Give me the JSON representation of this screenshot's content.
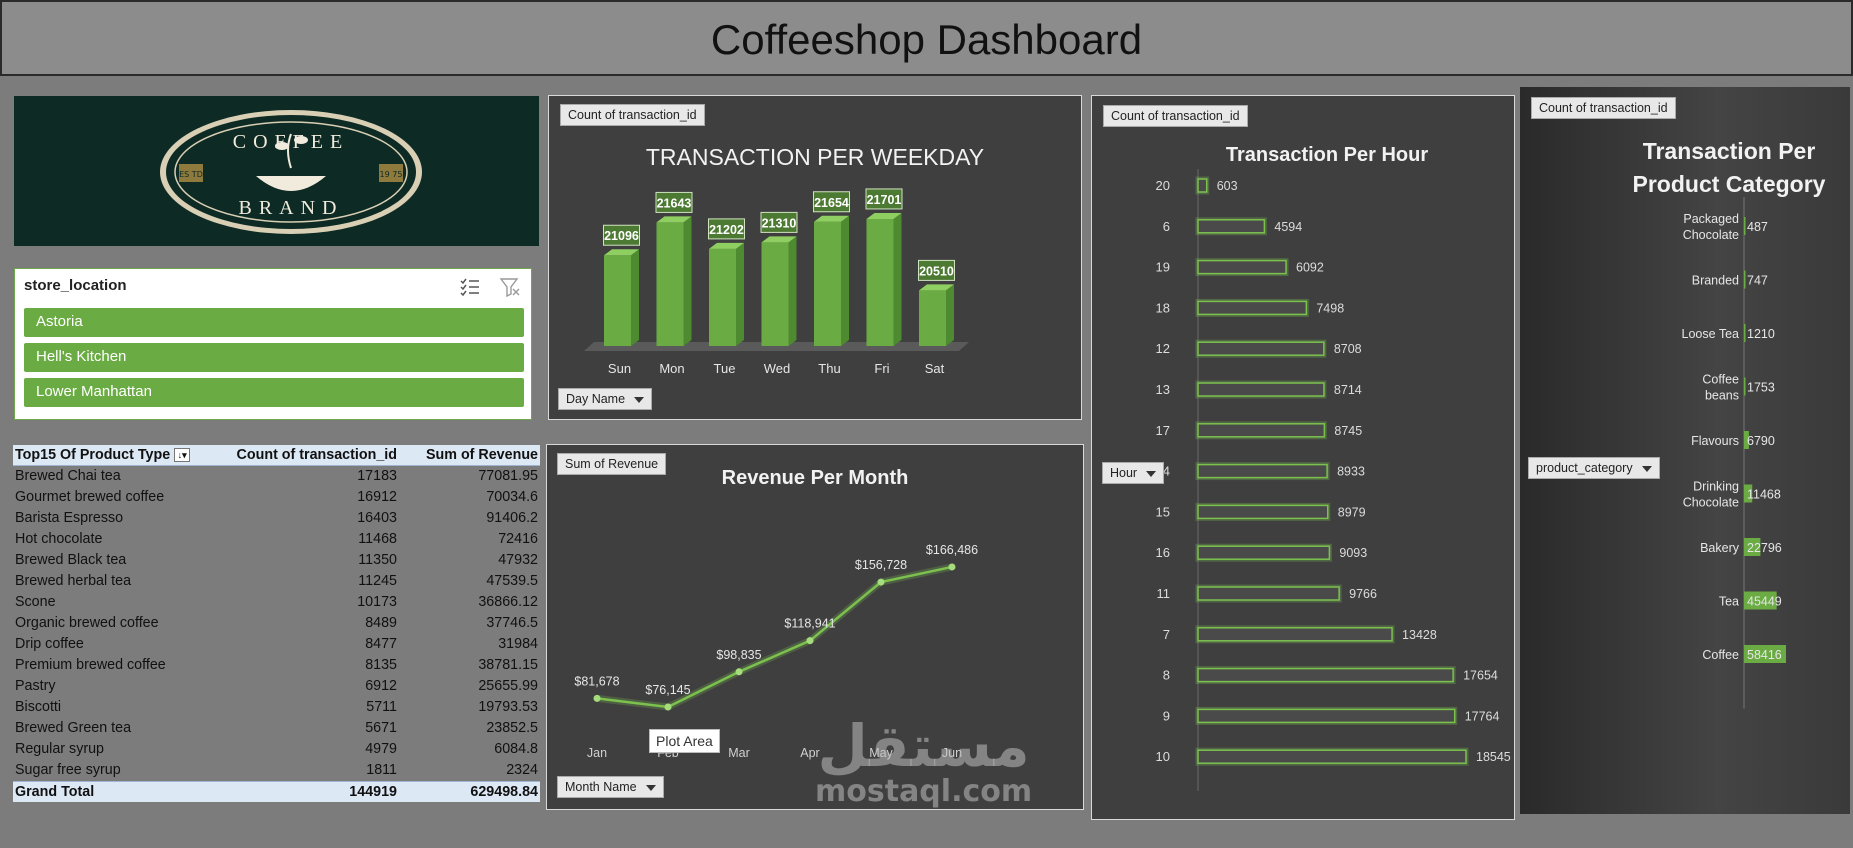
{
  "header": {
    "title": "Coffeeshop Dashboard"
  },
  "logo": {
    "top_text": "COFFEE",
    "bottom_text": "BRAND",
    "left_badge": "ES TD",
    "right_badge": "19 75"
  },
  "slicer": {
    "title": "store_location",
    "items": [
      "Astoria",
      "Hell's Kitchen",
      "Lower Manhattan"
    ]
  },
  "pivot": {
    "headers": [
      "Top15 Of Product Type",
      "Count of transaction_id",
      "Sum of Revenue"
    ],
    "rows": [
      [
        "Brewed Chai tea",
        "17183",
        "77081.95"
      ],
      [
        "Gourmet brewed coffee",
        "16912",
        "70034.6"
      ],
      [
        "Barista Espresso",
        "16403",
        "91406.2"
      ],
      [
        "Hot chocolate",
        "11468",
        "72416"
      ],
      [
        "Brewed Black tea",
        "11350",
        "47932"
      ],
      [
        "Brewed herbal tea",
        "11245",
        "47539.5"
      ],
      [
        "Scone",
        "10173",
        "36866.12"
      ],
      [
        "Organic brewed coffee",
        "8489",
        "37746.5"
      ],
      [
        "Drip coffee",
        "8477",
        "31984"
      ],
      [
        "Premium brewed coffee",
        "8135",
        "38781.15"
      ],
      [
        "Pastry",
        "6912",
        "25655.99"
      ],
      [
        "Biscotti",
        "5711",
        "19793.53"
      ],
      [
        "Brewed Green tea",
        "5671",
        "23852.5"
      ],
      [
        "Regular syrup",
        "4979",
        "6084.8"
      ],
      [
        "Sugar free syrup",
        "1811",
        "2324"
      ]
    ],
    "total": [
      "Grand Total",
      "144919",
      "629498.84"
    ]
  },
  "weekday": {
    "tag": "Count of transaction_id",
    "filter": "Day Name"
  },
  "revenue": {
    "tag": "Sum of Revenue",
    "filter": "Month Name",
    "tooltip": "Plot Area"
  },
  "hourly": {
    "tag": "Count of transaction_id",
    "filter": "Hour"
  },
  "category": {
    "tag": "Count of transaction_id",
    "filter": "product_category"
  },
  "watermark": {
    "arabic": "مستقل",
    "latin": "mostaql.com"
  },
  "colors": {
    "bar": "#6aac43",
    "bar_dark": "#4e8a2f",
    "line": "#7cc14e",
    "panel": "#3f3f3f"
  },
  "chart_data": [
    {
      "type": "bar",
      "title": "TRANSACTION PER WEEKDAY",
      "categories": [
        "Sun",
        "Mon",
        "Tue",
        "Wed",
        "Thu",
        "Fri",
        "Sat"
      ],
      "values": [
        21096,
        21643,
        21202,
        21310,
        21654,
        21701,
        20510
      ]
    },
    {
      "type": "line",
      "title": "Revenue Per Month",
      "categories": [
        "Jan",
        "Feb",
        "Mar",
        "Apr",
        "May",
        "Jun"
      ],
      "values": [
        81678,
        76145,
        98835,
        118941,
        156728,
        166486
      ],
      "labels": [
        "$81,678",
        "$76,145",
        "$98,835",
        "$118,941",
        "$156,728",
        "$166,486"
      ]
    },
    {
      "type": "bar",
      "orientation": "horizontal",
      "title": "Transaction Per Hour",
      "categories": [
        "20",
        "6",
        "19",
        "18",
        "12",
        "13",
        "17",
        "14",
        "15",
        "16",
        "11",
        "7",
        "8",
        "9",
        "10"
      ],
      "values": [
        603,
        4594,
        6092,
        7498,
        8708,
        8714,
        8745,
        8933,
        8979,
        9093,
        9766,
        13428,
        17654,
        17764,
        18545
      ]
    },
    {
      "type": "bar",
      "orientation": "horizontal",
      "title": "Transaction Per Product Category",
      "categories": [
        "Packaged Chocolate",
        "Branded",
        "Loose Tea",
        "Coffee beans",
        "Flavours",
        "Drinking Chocolate",
        "Bakery",
        "Tea",
        "Coffee"
      ],
      "values": [
        487,
        747,
        1210,
        1753,
        6790,
        11468,
        22796,
        45449,
        58416
      ]
    }
  ]
}
